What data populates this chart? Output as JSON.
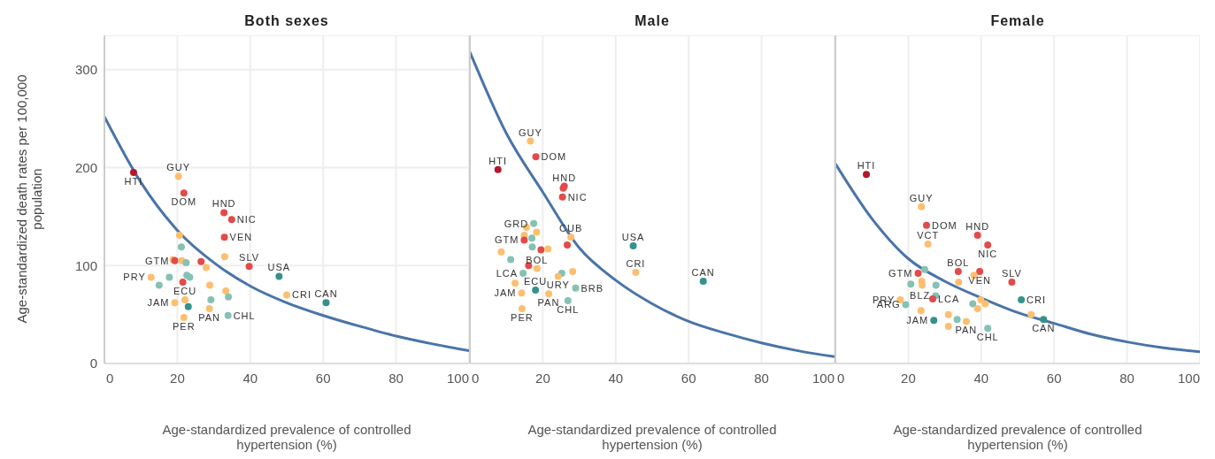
{
  "chart_data": [
    {
      "type": "scatter",
      "title": "Both sexes",
      "xlabel": "Age-standardized prevalence of controlled hypertension (%)",
      "ylabel": "Age-standardized death rates per 100,000 population",
      "xlim": [
        0,
        100
      ],
      "xticks": [
        0,
        20,
        40,
        60,
        80,
        100
      ],
      "ylim": [
        0,
        335
      ],
      "yticks": [
        0,
        100,
        200,
        300
      ],
      "grid": true,
      "line_style": "solid",
      "series": [
        {
          "type": "scatter",
          "marker": "circle",
          "x": [
            8.0,
            20.3,
            21.8,
            32.8,
            34.9,
            20.6,
            32.9,
            21.1,
            33.0,
            18.8,
            19.3,
            21.2,
            22.4,
            26.5,
            39.7,
            27.9,
            47.9,
            12.8,
            17.8,
            22.6,
            23.4,
            15.0,
            21.5,
            28.9,
            33.3,
            34.0,
            50.0,
            60.8,
            19.3,
            22.1,
            29.2,
            23.0,
            28.8,
            33.9,
            21.8
          ],
          "values": [
            195,
            191,
            174,
            154,
            147,
            131,
            129,
            119,
            109,
            106,
            105,
            105,
            103,
            104,
            99,
            98,
            89,
            88,
            88,
            90,
            88,
            80,
            83,
            80,
            74,
            68,
            70,
            62,
            62,
            65,
            65,
            58,
            56,
            49,
            47
          ],
          "colors": [
            "#b2182b",
            "#fdbf6f",
            "#e34a4a",
            "#e34a4a",
            "#e34a4a",
            "#fdbf6f",
            "#e34a4a",
            "#85c1b5",
            "#fdbf6f",
            "#fdbf6f",
            "#e34a4a",
            "#fdbf6f",
            "#85c1b5",
            "#e34a4a",
            "#e34a4a",
            "#fdbf6f",
            "#35918b",
            "#fdbf6f",
            "#85c1b5",
            "#85c1b5",
            "#85c1b5",
            "#85c1b5",
            "#e34a4a",
            "#fdbf6f",
            "#fdbf6f",
            "#85c1b5",
            "#fdbf6f",
            "#35918b",
            "#fdbf6f",
            "#fdbf6f",
            "#85c1b5",
            "#35918b",
            "#fdbf6f",
            "#85c1b5",
            "#fdbf6f"
          ]
        },
        {
          "type": "line",
          "color": "#4a74a8",
          "x": [
            0,
            10,
            20,
            30,
            40,
            50,
            60,
            70,
            80,
            90,
            100
          ],
          "values": [
            252,
            185,
            136,
            103,
            79,
            62,
            49,
            38,
            28,
            20,
            13
          ]
        }
      ],
      "annotations": [
        {
          "text": "HTI",
          "x": 8.0,
          "y": 195
        },
        {
          "text": "GUY",
          "x": 20.3,
          "y": 191
        },
        {
          "text": "DOM",
          "x": 21.8,
          "y": 174
        },
        {
          "text": "HND",
          "x": 32.8,
          "y": 154
        },
        {
          "text": "NIC",
          "x": 34.9,
          "y": 147
        },
        {
          "text": "VEN",
          "x": 32.9,
          "y": 129
        },
        {
          "text": "SLV",
          "x": 39.7,
          "y": 99
        },
        {
          "text": "USA",
          "x": 47.9,
          "y": 89
        },
        {
          "text": "GTM",
          "x": 19.3,
          "y": 105
        },
        {
          "text": "PRY",
          "x": 12.8,
          "y": 88
        },
        {
          "text": "CRI",
          "x": 50.0,
          "y": 70
        },
        {
          "text": "CAN",
          "x": 60.8,
          "y": 62
        },
        {
          "text": "JAM",
          "x": 19.3,
          "y": 62
        },
        {
          "text": "ECU",
          "x": 22.1,
          "y": 65
        },
        {
          "text": "PAN",
          "x": 28.8,
          "y": 56
        },
        {
          "text": "CHL",
          "x": 33.9,
          "y": 49
        },
        {
          "text": "PER",
          "x": 21.8,
          "y": 47
        }
      ]
    },
    {
      "type": "scatter",
      "title": "Male",
      "xlabel": "Age-standardized prevalence of controlled hypertension (%)",
      "xlim": [
        0,
        100
      ],
      "xticks": [
        0,
        20,
        40,
        60,
        80,
        100
      ],
      "ylim": [
        0,
        335
      ],
      "yticks": [
        0,
        100,
        200,
        300
      ],
      "tick_labels": "x",
      "grid": true,
      "line_style": "solid",
      "series": [
        {
          "type": "scatter",
          "marker": "circle",
          "x": [
            16.6,
            18.1,
            7.7,
            25.9,
            25.6,
            25.4,
            17.5,
            15.5,
            18.3,
            14.9,
            27.7,
            17.0,
            14.9,
            17.1,
            26.7,
            19.5,
            21.4,
            8.6,
            44.8,
            11.2,
            16.1,
            18.4,
            28.2,
            25.2,
            14.6,
            45.5,
            24.2,
            64.0,
            18.0,
            12.4,
            14.2,
            21.6,
            29.0,
            26.9,
            14.3
          ],
          "values": [
            227,
            211,
            198,
            181,
            179,
            170,
            143,
            139,
            134,
            131,
            129,
            128,
            126,
            119,
            121,
            116,
            117,
            114,
            120,
            106,
            100,
            97,
            94,
            92,
            92,
            93,
            89,
            84,
            75,
            82,
            72,
            71,
            77,
            64,
            56
          ],
          "colors": [
            "#fdbf6f",
            "#e34a4a",
            "#b2182b",
            "#e34a4a",
            "#e34a4a",
            "#e34a4a",
            "#85c1b5",
            "#fdbf6f",
            "#fdbf6f",
            "#fdbf6f",
            "#fdbf6f",
            "#85c1b5",
            "#e34a4a",
            "#85c1b5",
            "#e34a4a",
            "#e34a4a",
            "#fdbf6f",
            "#fdbf6f",
            "#35918b",
            "#85c1b5",
            "#e34a4a",
            "#fdbf6f",
            "#fdbf6f",
            "#85c1b5",
            "#85c1b5",
            "#fdbf6f",
            "#fdbf6f",
            "#35918b",
            "#35918b",
            "#fdbf6f",
            "#fdbf6f",
            "#fdbf6f",
            "#85c1b5",
            "#85c1b5",
            "#fdbf6f"
          ]
        },
        {
          "type": "line",
          "color": "#4a74a8",
          "x": [
            0,
            10,
            20,
            30,
            40,
            50,
            60,
            70,
            80,
            90,
            100
          ],
          "values": [
            318,
            235,
            175,
            118,
            85,
            61,
            43,
            31,
            21,
            13,
            7
          ]
        }
      ],
      "annotations": [
        {
          "text": "GUY",
          "x": 16.6,
          "y": 227
        },
        {
          "text": "DOM",
          "x": 18.1,
          "y": 211
        },
        {
          "text": "HTI",
          "x": 7.7,
          "y": 198
        },
        {
          "text": "HND",
          "x": 25.9,
          "y": 181
        },
        {
          "text": "NIC",
          "x": 25.4,
          "y": 170
        },
        {
          "text": "GRD",
          "x": 17.5,
          "y": 143
        },
        {
          "text": "CUB",
          "x": 27.7,
          "y": 129
        },
        {
          "text": "GTM",
          "x": 14.9,
          "y": 126
        },
        {
          "text": "USA",
          "x": 44.8,
          "y": 120
        },
        {
          "text": "BOL",
          "x": 18.4,
          "y": 97
        },
        {
          "text": "LCA",
          "x": 14.6,
          "y": 92
        },
        {
          "text": "CRI",
          "x": 45.5,
          "y": 93
        },
        {
          "text": "URY",
          "x": 24.2,
          "y": 89
        },
        {
          "text": "CAN",
          "x": 64.0,
          "y": 84
        },
        {
          "text": "ECU",
          "x": 18.0,
          "y": 75
        },
        {
          "text": "JAM",
          "x": 14.2,
          "y": 72
        },
        {
          "text": "PAN",
          "x": 21.6,
          "y": 71
        },
        {
          "text": "BRB",
          "x": 29.0,
          "y": 77
        },
        {
          "text": "CHL",
          "x": 26.9,
          "y": 64
        },
        {
          "text": "PER",
          "x": 14.3,
          "y": 56
        }
      ]
    },
    {
      "type": "scatter",
      "title": "Female",
      "xlabel": "Age-standardized prevalence of controlled hypertension (%)",
      "xlim": [
        0,
        100
      ],
      "xticks": [
        0,
        20,
        40,
        60,
        80,
        100
      ],
      "ylim": [
        0,
        335
      ],
      "yticks": [
        0,
        100,
        200,
        300
      ],
      "tick_labels": "x",
      "grid": true,
      "line_style": "solid",
      "series": [
        {
          "type": "scatter",
          "marker": "circle",
          "x": [
            8.5,
            23.6,
            25.0,
            39.0,
            25.4,
            41.8,
            22.7,
            24.5,
            33.7,
            39.6,
            38.0,
            48.4,
            33.8,
            20.7,
            23.7,
            23.8,
            27.6,
            51.0,
            27.5,
            26.7,
            17.8,
            19.3,
            39.9,
            41.1,
            37.7,
            39.0,
            23.5,
            53.7,
            57.1,
            27.0,
            31.0,
            33.4,
            35.9,
            31.0,
            41.8
          ],
          "values": [
            193,
            160,
            141,
            131,
            122,
            121,
            92,
            96,
            94,
            94,
            90,
            83,
            83,
            81,
            84,
            80,
            80,
            65,
            69,
            66,
            65,
            60,
            65,
            61,
            61,
            56,
            54,
            50,
            45,
            44,
            50,
            45,
            43,
            38,
            36
          ],
          "colors": [
            "#b2182b",
            "#fdbf6f",
            "#e34a4a",
            "#e34a4a",
            "#fdbf6f",
            "#e34a4a",
            "#e34a4a",
            "#85c1b5",
            "#e34a4a",
            "#e34a4a",
            "#fdbf6f",
            "#e34a4a",
            "#fdbf6f",
            "#85c1b5",
            "#fdbf6f",
            "#fdbf6f",
            "#85c1b5",
            "#35918b",
            "#85c1b5",
            "#e34a4a",
            "#fdbf6f",
            "#85c1b5",
            "#fdbf6f",
            "#fdbf6f",
            "#85c1b5",
            "#fdbf6f",
            "#fdbf6f",
            "#fdbf6f",
            "#35918b",
            "#35918b",
            "#fdbf6f",
            "#85c1b5",
            "#fdbf6f",
            "#fdbf6f",
            "#85c1b5"
          ]
        },
        {
          "type": "line",
          "color": "#4a74a8",
          "x": [
            0,
            10,
            20,
            30,
            40,
            50,
            60,
            70,
            80,
            90,
            100
          ],
          "values": [
            204,
            148,
            107,
            84,
            67,
            52,
            41,
            30,
            22,
            16,
            12
          ]
        }
      ],
      "annotations": [
        {
          "text": "HTI",
          "x": 8.5,
          "y": 193
        },
        {
          "text": "GUY",
          "x": 23.6,
          "y": 160
        },
        {
          "text": "DOM",
          "x": 25.0,
          "y": 141
        },
        {
          "text": "HND",
          "x": 39.0,
          "y": 131
        },
        {
          "text": "VCT",
          "x": 25.4,
          "y": 122
        },
        {
          "text": "NIC",
          "x": 41.8,
          "y": 121
        },
        {
          "text": "GTM",
          "x": 22.7,
          "y": 92
        },
        {
          "text": "BOL",
          "x": 33.7,
          "y": 94
        },
        {
          "text": "VEN",
          "x": 39.6,
          "y": 94
        },
        {
          "text": "SLV",
          "x": 48.4,
          "y": 83
        },
        {
          "text": "CRI",
          "x": 51.0,
          "y": 65
        },
        {
          "text": "BLZ",
          "x": 27.5,
          "y": 69
        },
        {
          "text": "LCA",
          "x": 26.7,
          "y": 66
        },
        {
          "text": "PRY",
          "x": 17.8,
          "y": 65
        },
        {
          "text": "ARG",
          "x": 19.3,
          "y": 60
        },
        {
          "text": "CAN",
          "x": 57.1,
          "y": 45
        },
        {
          "text": "JAM",
          "x": 27.0,
          "y": 44
        },
        {
          "text": "PAN",
          "x": 35.9,
          "y": 43
        },
        {
          "text": "CHL",
          "x": 41.8,
          "y": 36
        }
      ]
    }
  ]
}
